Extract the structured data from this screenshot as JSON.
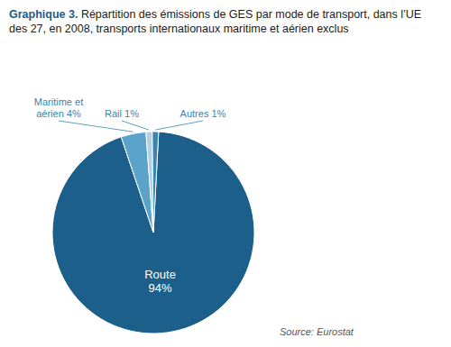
{
  "chart_data": {
    "type": "pie",
    "title": "Graphique 3.",
    "subtitle": "Répartition des émissions de GES par mode de transport, dans l’UE des 27, en 2008, transports internationaux maritime et aérien exclus",
    "categories": [
      "Route",
      "Maritime et\naérien",
      "Rail",
      "Autres"
    ],
    "values": [
      94,
      4,
      1,
      1
    ],
    "value_labels": [
      "94%",
      "4%",
      "1%",
      "1%"
    ],
    "colors": [
      "#1b5f8a",
      "#5ba3c9",
      "#afd0e6",
      "#3a85b0"
    ],
    "data_labels": true,
    "annotations": [
      "Source: Eurostat"
    ]
  }
}
